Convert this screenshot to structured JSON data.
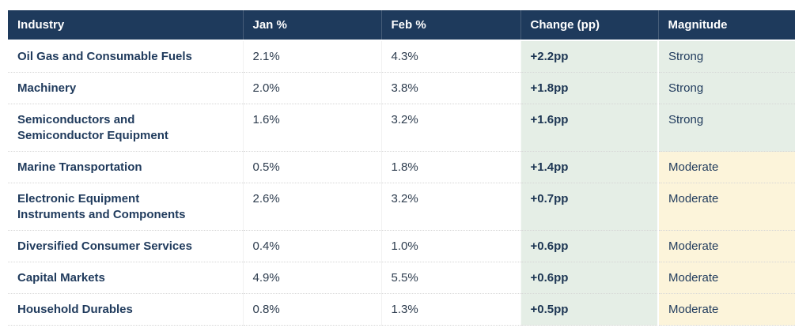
{
  "colors": {
    "header_bg": "#1e3a5c",
    "navy_text": "#1f3a5c",
    "change_column_bg": "#e5eee6",
    "strong_bg": "#e5eee6",
    "moderate_bg": "#fcf4da"
  },
  "table": {
    "columns": [
      {
        "label": "Industry"
      },
      {
        "label": "Jan %"
      },
      {
        "label": "Feb %"
      },
      {
        "label": "Change (pp)"
      },
      {
        "label": "Magnitude"
      }
    ],
    "rows": [
      {
        "industry": "Oil Gas and Consumable Fuels",
        "jan": "2.1%",
        "feb": "4.3%",
        "change": "+2.2pp",
        "magnitude": "Strong"
      },
      {
        "industry": "Machinery",
        "jan": "2.0%",
        "feb": "3.8%",
        "change": "+1.8pp",
        "magnitude": "Strong"
      },
      {
        "industry": "Semiconductors and Semiconductor Equipment",
        "jan": "1.6%",
        "feb": "3.2%",
        "change": "+1.6pp",
        "magnitude": "Strong"
      },
      {
        "industry": "Marine Transportation",
        "jan": "0.5%",
        "feb": "1.8%",
        "change": "+1.4pp",
        "magnitude": "Moderate"
      },
      {
        "industry": "Electronic Equipment Instruments and Components",
        "jan": "2.6%",
        "feb": "3.2%",
        "change": "+0.7pp",
        "magnitude": "Moderate"
      },
      {
        "industry": "Diversified Consumer Services",
        "jan": "0.4%",
        "feb": "1.0%",
        "change": "+0.6pp",
        "magnitude": "Moderate"
      },
      {
        "industry": "Capital Markets",
        "jan": "4.9%",
        "feb": "5.5%",
        "change": "+0.6pp",
        "magnitude": "Moderate"
      },
      {
        "industry": "Household Durables",
        "jan": "0.8%",
        "feb": "1.3%",
        "change": "+0.5pp",
        "magnitude": "Moderate"
      }
    ]
  },
  "chart_data": {
    "type": "table",
    "title": "",
    "columns": [
      "Industry",
      "Jan %",
      "Feb %",
      "Change (pp)",
      "Magnitude"
    ],
    "categories": [
      "Oil Gas and Consumable Fuels",
      "Machinery",
      "Semiconductors and Semiconductor Equipment",
      "Marine Transportation",
      "Electronic Equipment Instruments and Components",
      "Diversified Consumer Services",
      "Capital Markets",
      "Household Durables"
    ],
    "series": [
      {
        "name": "Jan %",
        "values": [
          2.1,
          2.0,
          1.6,
          0.5,
          2.6,
          0.4,
          4.9,
          0.8
        ]
      },
      {
        "name": "Feb %",
        "values": [
          4.3,
          3.8,
          3.2,
          1.8,
          3.2,
          1.0,
          5.5,
          1.3
        ]
      },
      {
        "name": "Change (pp)",
        "values": [
          2.2,
          1.8,
          1.6,
          1.4,
          0.7,
          0.6,
          0.6,
          0.5
        ]
      },
      {
        "name": "Magnitude",
        "values": [
          "Strong",
          "Strong",
          "Strong",
          "Moderate",
          "Moderate",
          "Moderate",
          "Moderate",
          "Moderate"
        ]
      }
    ]
  }
}
